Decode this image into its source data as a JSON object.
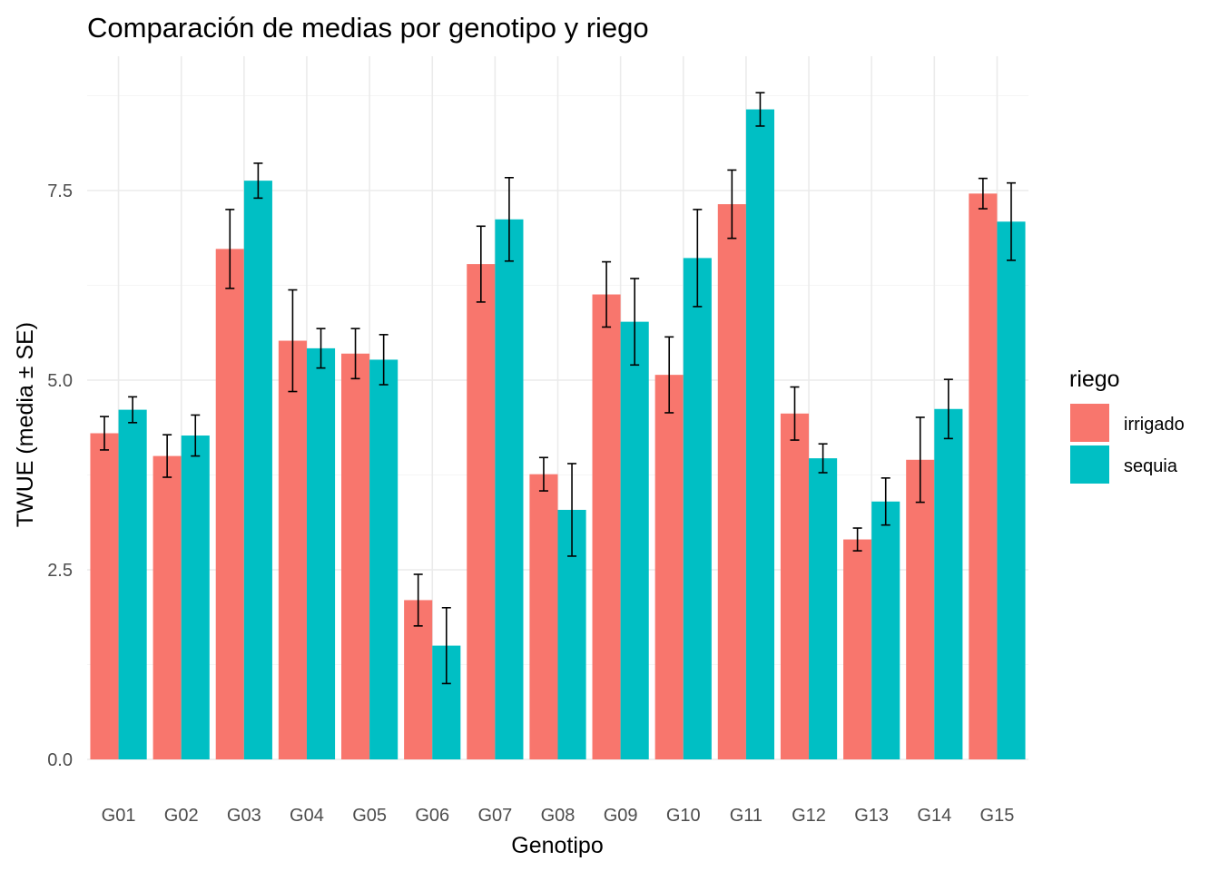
{
  "chart_data": {
    "type": "bar",
    "title": "Comparación de medias por genotipo y riego",
    "xlabel": "Genotipo",
    "ylabel": "TWUE (media ± SE)",
    "ylim": [
      0,
      9.2
    ],
    "y_ticks": [
      0,
      2.5,
      5,
      7.5
    ],
    "y_tick_labels": [
      "0.0",
      "2.5",
      "5.0",
      "7.5"
    ],
    "grid": true,
    "legend": {
      "title": "riego",
      "position": "right"
    },
    "categories": [
      "G01",
      "G02",
      "G03",
      "G04",
      "G05",
      "G06",
      "G07",
      "G08",
      "G09",
      "G10",
      "G11",
      "G12",
      "G13",
      "G14",
      "G15"
    ],
    "series": [
      {
        "name": "irrigado",
        "color": "#F8766D",
        "values": [
          4.3,
          4.0,
          6.73,
          5.52,
          5.35,
          2.1,
          6.53,
          3.76,
          6.13,
          5.07,
          7.32,
          4.56,
          2.9,
          3.95,
          7.46
        ],
        "se": [
          0.22,
          0.28,
          0.52,
          0.67,
          0.33,
          0.34,
          0.5,
          0.22,
          0.43,
          0.5,
          0.45,
          0.35,
          0.15,
          0.56,
          0.2
        ]
      },
      {
        "name": "sequia",
        "color": "#00BFC4",
        "values": [
          4.61,
          4.27,
          7.63,
          5.42,
          5.27,
          1.5,
          7.12,
          3.29,
          5.77,
          6.61,
          8.57,
          3.97,
          3.4,
          4.62,
          7.09
        ],
        "se": [
          0.17,
          0.27,
          0.23,
          0.26,
          0.33,
          0.5,
          0.55,
          0.61,
          0.57,
          0.64,
          0.22,
          0.19,
          0.31,
          0.39,
          0.51
        ]
      }
    ]
  }
}
